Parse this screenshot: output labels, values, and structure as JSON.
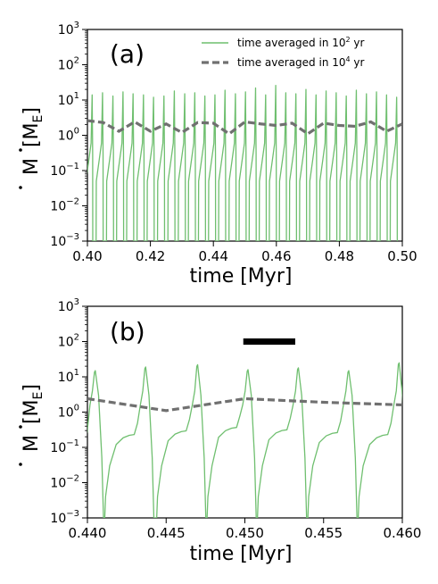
{
  "chart_data": [
    {
      "type": "line",
      "panel_label": "(a)",
      "xlabel": "time  [Myr]",
      "ylabel_main": "M",
      "ylabel_unit_main": "M",
      "ylabel_unit_sub": "E",
      "xlim": [
        0.4,
        0.5
      ],
      "ylim": [
        0.001,
        1000
      ],
      "yscale": "log",
      "xticks": [
        0.4,
        0.42,
        0.44,
        0.46,
        0.48,
        0.5
      ],
      "xtick_labels": [
        "0.40",
        "0.42",
        "0.44",
        "0.46",
        "0.48",
        "0.50"
      ],
      "ytick_exponents": [
        -3,
        -2,
        -1,
        0,
        1,
        2,
        3
      ],
      "ytick_base": "10",
      "legend": {
        "location": "top-right",
        "entries": [
          {
            "text_main": "time averaged in 10",
            "text_sup": "2",
            "text_tail": " yr",
            "style": "solid",
            "color": "#6fbf6f"
          },
          {
            "text_main": "time averaged in 10",
            "text_sup": "4",
            "text_tail": " yr",
            "style": "dashed",
            "color": "#707070"
          }
        ]
      },
      "series": [
        {
          "style": "solid",
          "color": "#6fbf6f",
          "bursts": [
            {
              "t": 0.4015,
              "peak": 14
            },
            {
              "t": 0.4048,
              "peak": 16
            },
            {
              "t": 0.4081,
              "peak": 13
            },
            {
              "t": 0.4113,
              "peak": 17
            },
            {
              "t": 0.4145,
              "peak": 15
            },
            {
              "t": 0.4178,
              "peak": 14
            },
            {
              "t": 0.421,
              "peak": 12
            },
            {
              "t": 0.4243,
              "peak": 13
            },
            {
              "t": 0.4276,
              "peak": 18
            },
            {
              "t": 0.4309,
              "peak": 15
            },
            {
              "t": 0.4341,
              "peak": 16
            },
            {
              "t": 0.4373,
              "peak": 13
            },
            {
              "t": 0.4405,
              "peak": 14
            },
            {
              "t": 0.4437,
              "peak": 19
            },
            {
              "t": 0.447,
              "peak": 15
            },
            {
              "t": 0.4502,
              "peak": 17
            },
            {
              "t": 0.4534,
              "peak": 22
            },
            {
              "t": 0.4566,
              "peak": 14
            },
            {
              "t": 0.4598,
              "peak": 26
            },
            {
              "t": 0.463,
              "peak": 16
            },
            {
              "t": 0.4662,
              "peak": 15
            },
            {
              "t": 0.4694,
              "peak": 20
            },
            {
              "t": 0.4726,
              "peak": 14
            },
            {
              "t": 0.4758,
              "peak": 18
            },
            {
              "t": 0.479,
              "peak": 16
            },
            {
              "t": 0.4822,
              "peak": 13
            },
            {
              "t": 0.4854,
              "peak": 19
            },
            {
              "t": 0.4886,
              "peak": 15
            },
            {
              "t": 0.4918,
              "peak": 17
            },
            {
              "t": 0.495,
              "peak": 14
            },
            {
              "t": 0.4982,
              "peak": 12
            }
          ]
        },
        {
          "style": "dashed",
          "color": "#707070",
          "x": [
            0.4,
            0.405,
            0.41,
            0.415,
            0.42,
            0.425,
            0.43,
            0.435,
            0.44,
            0.445,
            0.45,
            0.455,
            0.46,
            0.465,
            0.47,
            0.475,
            0.48,
            0.485,
            0.49,
            0.495,
            0.5
          ],
          "y": [
            2.6,
            2.3,
            1.3,
            2.4,
            1.3,
            2.1,
            1.2,
            2.3,
            2.2,
            1.1,
            2.4,
            2.1,
            1.9,
            2.2,
            1.1,
            2.2,
            1.9,
            1.8,
            2.4,
            1.3,
            2.1
          ]
        }
      ]
    },
    {
      "type": "line",
      "panel_label": "(b)",
      "xlabel": "time  [Myr]",
      "ylabel_main": "M",
      "ylabel_unit_main": "M",
      "ylabel_unit_sub": "E",
      "xlim": [
        0.44,
        0.46
      ],
      "ylim": [
        0.001,
        1000
      ],
      "yscale": "log",
      "xticks": [
        0.44,
        0.445,
        0.45,
        0.455,
        0.46
      ],
      "xtick_labels": [
        "0.440",
        "0.445",
        "0.450",
        "0.455",
        "0.460"
      ],
      "ytick_exponents": [
        -3,
        -2,
        -1,
        0,
        1,
        2,
        3
      ],
      "ytick_base": "10",
      "scale_bar": {
        "x": [
          0.4499,
          0.4532
        ],
        "y": 100
      },
      "series": [
        {
          "style": "solid",
          "color": "#6fbf6f",
          "bursts": [
            {
              "t": 0.4405,
              "peak": 15,
              "base": 0.12
            },
            {
              "t": 0.4437,
              "peak": 19,
              "base": 0.22
            },
            {
              "t": 0.447,
              "peak": 22,
              "base": 0.28
            },
            {
              "t": 0.4502,
              "peak": 16,
              "base": 0.35
            },
            {
              "t": 0.4534,
              "peak": 18,
              "base": 0.3
            },
            {
              "t": 0.4566,
              "peak": 15,
              "base": 0.25
            },
            {
              "t": 0.4598,
              "peak": 25,
              "base": 0.22
            }
          ]
        },
        {
          "style": "dashed",
          "color": "#707070",
          "x": [
            0.44,
            0.445,
            0.45,
            0.455,
            0.46
          ],
          "y": [
            2.4,
            1.1,
            2.4,
            1.9,
            1.6
          ]
        }
      ]
    }
  ]
}
